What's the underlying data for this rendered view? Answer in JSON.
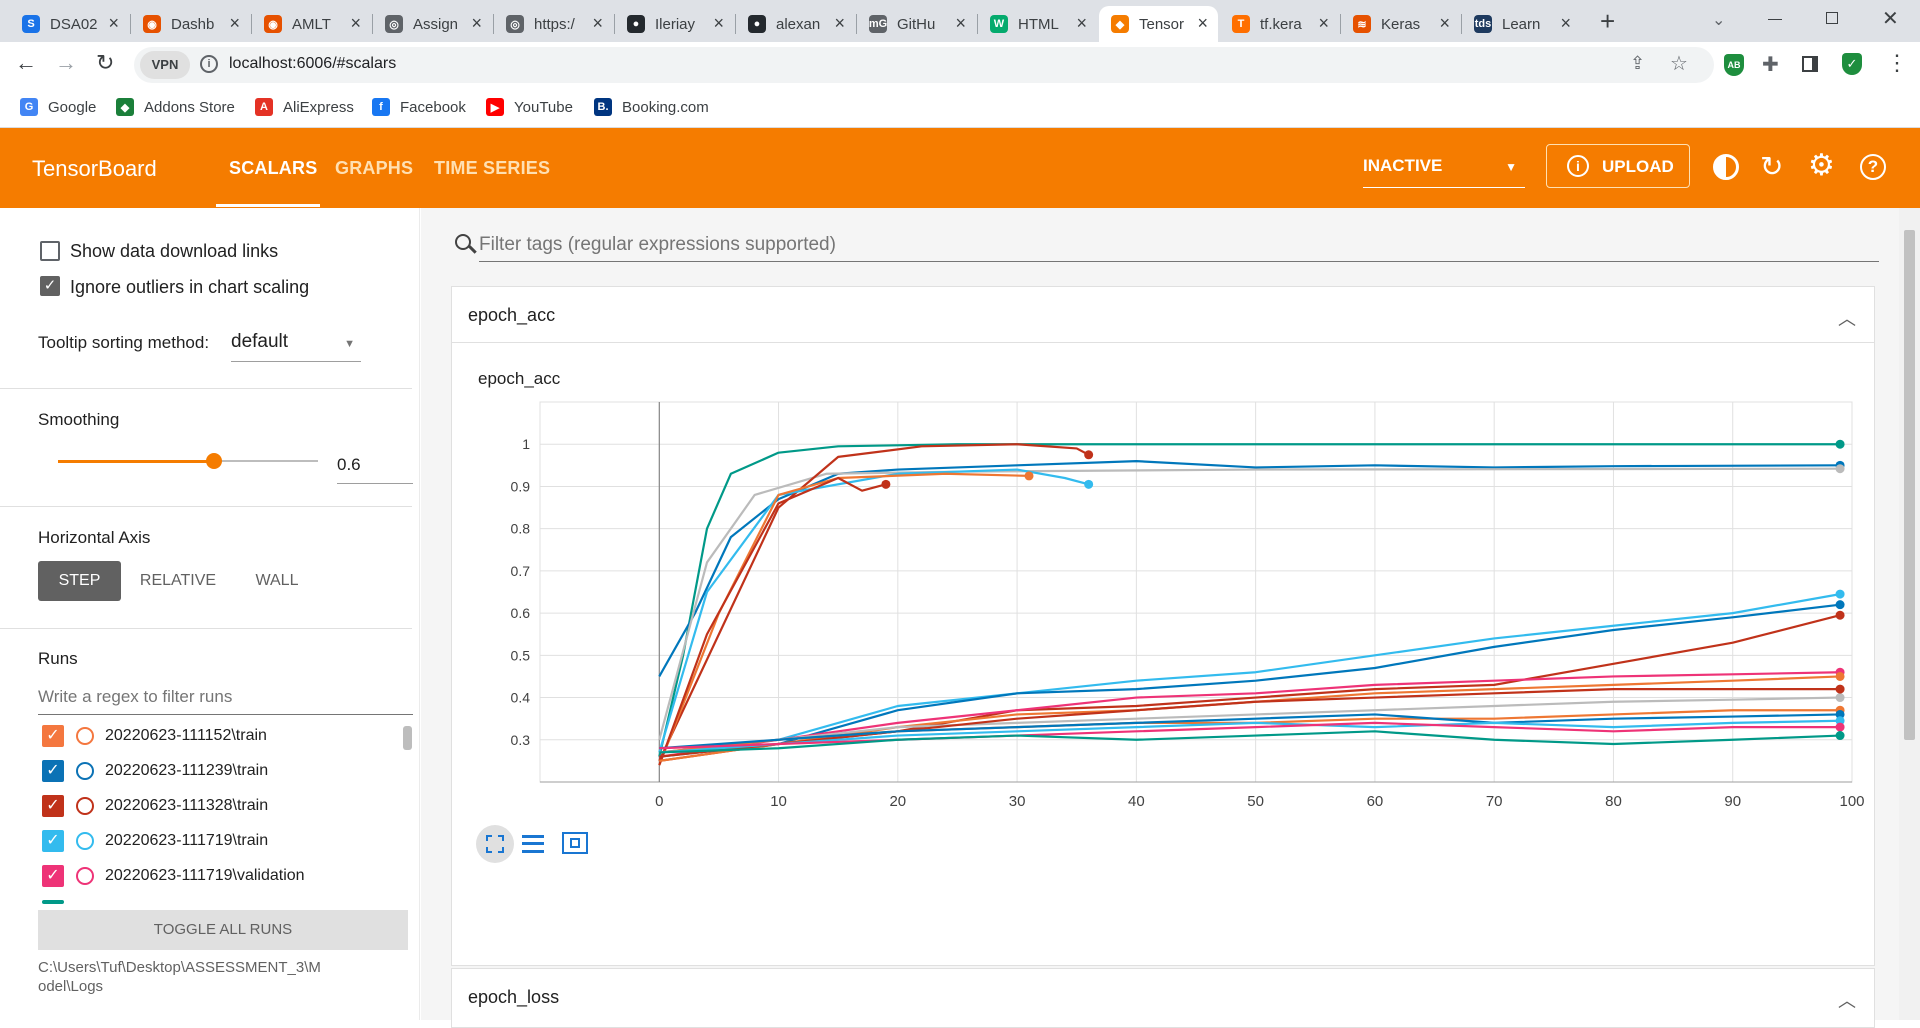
{
  "browser": {
    "tabs": [
      {
        "title": "DSA02",
        "color": "#1a73e8",
        "fav": "S"
      },
      {
        "title": "Dashb",
        "color": "#e65100",
        "fav": "◉"
      },
      {
        "title": "AMLT",
        "color": "#e65100",
        "fav": "◉"
      },
      {
        "title": "Assign",
        "color": "#5f6368",
        "fav": "◎"
      },
      {
        "title": "https:/",
        "color": "#5f6368",
        "fav": "◎"
      },
      {
        "title": "Ileriay",
        "color": "#24292e",
        "fav": "●"
      },
      {
        "title": "alexan",
        "color": "#24292e",
        "fav": "●"
      },
      {
        "title": "GitHu",
        "color": "#5f6368",
        "fav": "mG"
      },
      {
        "title": "HTML",
        "color": "#04aa6d",
        "fav": "W"
      },
      {
        "title": "Tensor",
        "color": "#f57c00",
        "fav": "◆"
      },
      {
        "title": "tf.kera",
        "color": "#ff6f00",
        "fav": "T"
      },
      {
        "title": "Keras",
        "color": "#e65100",
        "fav": "≋"
      },
      {
        "title": "Learn",
        "color": "#1e3a5f",
        "fav": "tds"
      }
    ],
    "url": "localhost:6006/#scalars",
    "vpn_label": "VPN",
    "bookmarks": [
      {
        "label": "Google",
        "color": "#4285f4",
        "fav": "G"
      },
      {
        "label": "Addons Store",
        "color": "#1b7f3a",
        "fav": "◆"
      },
      {
        "label": "AliExpress",
        "color": "#e43225",
        "fav": "A"
      },
      {
        "label": "Facebook",
        "color": "#1877f2",
        "fav": "f"
      },
      {
        "label": "YouTube",
        "color": "#ff0000",
        "fav": "▶"
      },
      {
        "label": "Booking.com",
        "color": "#003580",
        "fav": "B."
      }
    ]
  },
  "tensorboard": {
    "brand": "TensorBoard",
    "nav": [
      "SCALARS",
      "GRAPHS",
      "TIME SERIES"
    ],
    "active_nav": "SCALARS",
    "status": "INACTIVE",
    "upload": "UPLOAD",
    "accent": "#f57c00"
  },
  "sidebar": {
    "show_download_links": "Show data download links",
    "ignore_outliers": "Ignore outliers in chart scaling",
    "tooltip_label": "Tooltip sorting method:",
    "tooltip_value": "default",
    "smoothing_label": "Smoothing",
    "smoothing_value": "0.6",
    "smoothing_fraction": 0.6,
    "horizontal_axis_label": "Horizontal Axis",
    "axis_options": [
      "STEP",
      "RELATIVE",
      "WALL"
    ],
    "axis_selected": "STEP",
    "runs_label": "Runs",
    "runs_filter_placeholder": "Write a regex to filter runs",
    "runs": [
      {
        "name": "20220623-111152\\train",
        "color": "#f4773f"
      },
      {
        "name": "20220623-111239\\train",
        "color": "#0b72b5"
      },
      {
        "name": "20220623-111328\\train",
        "color": "#c0321a"
      },
      {
        "name": "20220623-111719\\train",
        "color": "#33bbee"
      },
      {
        "name": "20220623-111719\\validation",
        "color": "#ee3377"
      }
    ],
    "toggle_all": "TOGGLE ALL RUNS",
    "logdir": "C:\\Users\\Tuf\\Desktop\\ASSESSMENT_3\\Model\\Logs"
  },
  "main": {
    "filter_placeholder": "Filter tags (regular expressions supported)",
    "cards": [
      {
        "title": "epoch_acc",
        "chart_title": "epoch_acc"
      },
      {
        "title": "epoch_loss"
      }
    ]
  },
  "chart_data": {
    "type": "line",
    "title": "epoch_acc",
    "xlabel": "",
    "ylabel": "",
    "xlim": [
      -10,
      100
    ],
    "ylim": [
      0.2,
      1.1
    ],
    "x_ticks": [
      0,
      10,
      20,
      30,
      40,
      50,
      60,
      70,
      80,
      90,
      100
    ],
    "y_ticks": [
      0.3,
      0.4,
      0.5,
      0.6,
      0.7,
      0.8,
      0.9,
      1
    ],
    "grid": true,
    "series": [
      {
        "color": "#009988",
        "values": [
          [
            0,
            0.26
          ],
          [
            2,
            0.5
          ],
          [
            4,
            0.8
          ],
          [
            6,
            0.93
          ],
          [
            10,
            0.98
          ],
          [
            15,
            0.995
          ],
          [
            25,
            1.0
          ],
          [
            99,
            1.0
          ]
        ]
      },
      {
        "color": "#0077bb",
        "values": [
          [
            0,
            0.45
          ],
          [
            3,
            0.6
          ],
          [
            6,
            0.78
          ],
          [
            10,
            0.87
          ],
          [
            15,
            0.93
          ],
          [
            20,
            0.94
          ],
          [
            30,
            0.95
          ],
          [
            40,
            0.96
          ],
          [
            50,
            0.945
          ],
          [
            60,
            0.95
          ],
          [
            70,
            0.945
          ],
          [
            80,
            0.948
          ],
          [
            99,
            0.95
          ]
        ]
      },
      {
        "color": "#bbbbbb",
        "values": [
          [
            0,
            0.3
          ],
          [
            4,
            0.72
          ],
          [
            8,
            0.88
          ],
          [
            14,
            0.93
          ],
          [
            25,
            0.935
          ],
          [
            50,
            0.94
          ],
          [
            99,
            0.942
          ]
        ]
      },
      {
        "color": "#c0321a",
        "values": [
          [
            0,
            0.25
          ],
          [
            5,
            0.55
          ],
          [
            10,
            0.85
          ],
          [
            15,
            0.97
          ],
          [
            22,
            0.995
          ],
          [
            30,
            1.0
          ],
          [
            35,
            0.99
          ],
          [
            36,
            0.975
          ]
        ]
      },
      {
        "color": "#33bbee",
        "values": [
          [
            0,
            0.27
          ],
          [
            4,
            0.65
          ],
          [
            10,
            0.88
          ],
          [
            20,
            0.93
          ],
          [
            30,
            0.94
          ],
          [
            34,
            0.92
          ],
          [
            36,
            0.905
          ]
        ]
      },
      {
        "color": "#ee7733",
        "values": [
          [
            0,
            0.24
          ],
          [
            5,
            0.6
          ],
          [
            10,
            0.88
          ],
          [
            15,
            0.92
          ],
          [
            24,
            0.93
          ],
          [
            31,
            0.925
          ]
        ]
      },
      {
        "color": "#c0321a",
        "values": [
          [
            0,
            0.24
          ],
          [
            4,
            0.55
          ],
          [
            10,
            0.86
          ],
          [
            15,
            0.92
          ],
          [
            17,
            0.89
          ],
          [
            19,
            0.905
          ]
        ]
      },
      {
        "color": "#33bbee",
        "values": [
          [
            0,
            0.27
          ],
          [
            10,
            0.3
          ],
          [
            20,
            0.38
          ],
          [
            30,
            0.41
          ],
          [
            40,
            0.44
          ],
          [
            50,
            0.46
          ],
          [
            60,
            0.5
          ],
          [
            70,
            0.54
          ],
          [
            80,
            0.57
          ],
          [
            90,
            0.6
          ],
          [
            99,
            0.645
          ]
        ]
      },
      {
        "color": "#0077bb",
        "values": [
          [
            0,
            0.26
          ],
          [
            10,
            0.29
          ],
          [
            20,
            0.37
          ],
          [
            30,
            0.41
          ],
          [
            40,
            0.42
          ],
          [
            50,
            0.44
          ],
          [
            60,
            0.47
          ],
          [
            70,
            0.52
          ],
          [
            80,
            0.56
          ],
          [
            90,
            0.59
          ],
          [
            99,
            0.62
          ]
        ]
      },
      {
        "color": "#c0321a",
        "values": [
          [
            0,
            0.25
          ],
          [
            10,
            0.29
          ],
          [
            20,
            0.32
          ],
          [
            30,
            0.37
          ],
          [
            40,
            0.38
          ],
          [
            50,
            0.4
          ],
          [
            60,
            0.42
          ],
          [
            70,
            0.43
          ],
          [
            80,
            0.48
          ],
          [
            90,
            0.53
          ],
          [
            99,
            0.595
          ]
        ]
      },
      {
        "color": "#ee3377",
        "values": [
          [
            0,
            0.26
          ],
          [
            10,
            0.3
          ],
          [
            20,
            0.34
          ],
          [
            30,
            0.37
          ],
          [
            40,
            0.4
          ],
          [
            50,
            0.41
          ],
          [
            60,
            0.43
          ],
          [
            70,
            0.44
          ],
          [
            80,
            0.45
          ],
          [
            90,
            0.455
          ],
          [
            99,
            0.46
          ]
        ]
      },
      {
        "color": "#ee7733",
        "values": [
          [
            0,
            0.25
          ],
          [
            10,
            0.29
          ],
          [
            20,
            0.33
          ],
          [
            30,
            0.36
          ],
          [
            40,
            0.37
          ],
          [
            50,
            0.39
          ],
          [
            60,
            0.41
          ],
          [
            70,
            0.42
          ],
          [
            80,
            0.43
          ],
          [
            90,
            0.44
          ],
          [
            99,
            0.45
          ]
        ]
      },
      {
        "color": "#bbbbbb",
        "values": [
          [
            0,
            0.27
          ],
          [
            10,
            0.3
          ],
          [
            20,
            0.33
          ],
          [
            30,
            0.34
          ],
          [
            40,
            0.35
          ],
          [
            50,
            0.36
          ],
          [
            60,
            0.37
          ],
          [
            70,
            0.38
          ],
          [
            80,
            0.39
          ],
          [
            90,
            0.395
          ],
          [
            99,
            0.4
          ]
        ]
      },
      {
        "color": "#c0321a",
        "values": [
          [
            0,
            0.26
          ],
          [
            10,
            0.29
          ],
          [
            20,
            0.32
          ],
          [
            30,
            0.35
          ],
          [
            40,
            0.37
          ],
          [
            50,
            0.39
          ],
          [
            60,
            0.4
          ],
          [
            70,
            0.41
          ],
          [
            80,
            0.42
          ],
          [
            90,
            0.42
          ],
          [
            99,
            0.42
          ]
        ]
      },
      {
        "color": "#ee7733",
        "values": [
          [
            0,
            0.27
          ],
          [
            10,
            0.3
          ],
          [
            20,
            0.32
          ],
          [
            30,
            0.33
          ],
          [
            40,
            0.34
          ],
          [
            50,
            0.34
          ],
          [
            60,
            0.35
          ],
          [
            70,
            0.35
          ],
          [
            80,
            0.36
          ],
          [
            90,
            0.37
          ],
          [
            99,
            0.37
          ]
        ]
      },
      {
        "color": "#0077bb",
        "values": [
          [
            0,
            0.28
          ],
          [
            10,
            0.3
          ],
          [
            20,
            0.32
          ],
          [
            30,
            0.33
          ],
          [
            40,
            0.34
          ],
          [
            50,
            0.35
          ],
          [
            60,
            0.36
          ],
          [
            70,
            0.34
          ],
          [
            80,
            0.35
          ],
          [
            90,
            0.355
          ],
          [
            99,
            0.36
          ]
        ]
      },
      {
        "color": "#33bbee",
        "values": [
          [
            0,
            0.27
          ],
          [
            10,
            0.29
          ],
          [
            20,
            0.31
          ],
          [
            30,
            0.32
          ],
          [
            40,
            0.33
          ],
          [
            50,
            0.34
          ],
          [
            60,
            0.33
          ],
          [
            70,
            0.34
          ],
          [
            80,
            0.33
          ],
          [
            90,
            0.34
          ],
          [
            99,
            0.345
          ]
        ]
      },
      {
        "color": "#ee3377",
        "values": [
          [
            0,
            0.28
          ],
          [
            10,
            0.29
          ],
          [
            20,
            0.3
          ],
          [
            30,
            0.31
          ],
          [
            40,
            0.32
          ],
          [
            50,
            0.33
          ],
          [
            60,
            0.34
          ],
          [
            70,
            0.33
          ],
          [
            80,
            0.32
          ],
          [
            90,
            0.33
          ],
          [
            99,
            0.33
          ]
        ]
      },
      {
        "color": "#009988",
        "values": [
          [
            0,
            0.27
          ],
          [
            10,
            0.28
          ],
          [
            20,
            0.3
          ],
          [
            30,
            0.31
          ],
          [
            40,
            0.3
          ],
          [
            50,
            0.31
          ],
          [
            60,
            0.32
          ],
          [
            70,
            0.3
          ],
          [
            80,
            0.29
          ],
          [
            90,
            0.3
          ],
          [
            99,
            0.31
          ]
        ]
      }
    ]
  }
}
